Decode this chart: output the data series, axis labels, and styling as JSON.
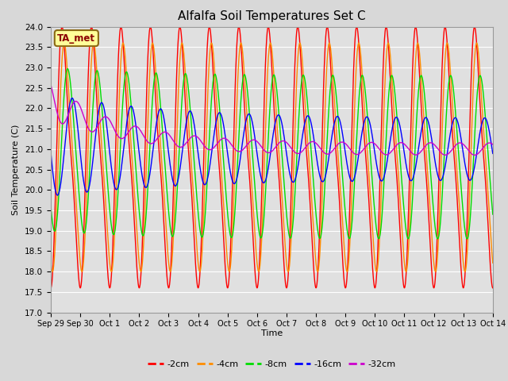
{
  "title": "Alfalfa Soil Temperatures Set C",
  "ylabel": "Soil Temperature (C)",
  "xlabel": "Time",
  "ylim": [
    17.0,
    24.0
  ],
  "yticks": [
    17.0,
    17.5,
    18.0,
    18.5,
    19.0,
    19.5,
    20.0,
    20.5,
    21.0,
    21.5,
    22.0,
    22.5,
    23.0,
    23.5,
    24.0
  ],
  "background_color": "#d8d8d8",
  "plot_bg_color": "#e0e0e0",
  "series_colors": {
    "-2cm": "#ff0000",
    "-4cm": "#ff8c00",
    "-8cm": "#00dd00",
    "-16cm": "#0000ff",
    "-32cm": "#cc00cc"
  },
  "legend_labels": [
    "-2cm",
    "-4cm",
    "-8cm",
    "-16cm",
    "-32cm"
  ],
  "annotation_text": "TA_met",
  "annotation_color": "#8b0000",
  "annotation_bg": "#ffff99",
  "x_tick_labels": [
    "Sep 29",
    "Sep 30",
    "Oct 1",
    "Oct 2",
    "Oct 3",
    "Oct 4",
    "Oct 5",
    "Oct 6",
    "Oct 7",
    "Oct 8",
    "Oct 9",
    "Oct 10",
    "Oct 11",
    "Oct 12",
    "Oct 13",
    "Oct 14"
  ],
  "x_tick_positions": [
    0,
    24,
    48,
    72,
    96,
    120,
    144,
    168,
    192,
    216,
    240,
    264,
    288,
    312,
    336,
    360
  ]
}
